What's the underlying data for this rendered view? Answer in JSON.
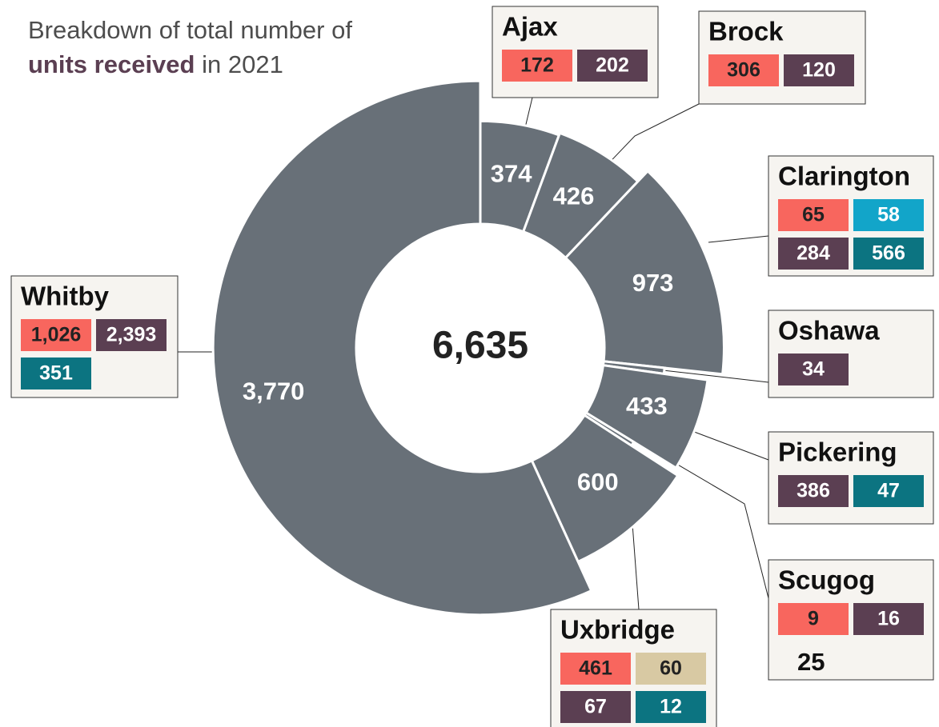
{
  "chart_data": {
    "type": "donut",
    "title": "Breakdown of total number of",
    "title_bold": "units received",
    "title_end": "in 2021",
    "total": {
      "value": 6635,
      "label": "6,635"
    },
    "color": "#687078",
    "categories": [
      "Ajax",
      "Brock",
      "Clarington",
      "Oshawa",
      "Pickering",
      "Scugog",
      "Uxbridge",
      "Whitby"
    ],
    "values": [
      374,
      426,
      973,
      34,
      433,
      25,
      600,
      3770
    ],
    "value_labels": [
      "374",
      "426",
      "973",
      "34",
      "433",
      "25",
      "600",
      "3,770"
    ],
    "breakdowns": [
      [
        {
          "value": 172,
          "color": "#f8665e"
        },
        {
          "value": 202,
          "color": "#5b3f52"
        }
      ],
      [
        {
          "value": 306,
          "color": "#f8665e"
        },
        {
          "value": 120,
          "color": "#5b3f52"
        }
      ],
      [
        {
          "value": 65,
          "color": "#f8665e"
        },
        {
          "value": 58,
          "color": "#12a5c9"
        },
        {
          "value": 284,
          "color": "#5b3f52"
        },
        {
          "value": 566,
          "color": "#0c7481"
        }
      ],
      [
        {
          "value": 34,
          "color": "#5b3f52"
        }
      ],
      [
        {
          "value": 386,
          "color": "#5b3f52"
        },
        {
          "value": 47,
          "color": "#0c7481"
        }
      ],
      [
        {
          "value": 9,
          "color": "#f8665e"
        },
        {
          "value": 16,
          "color": "#5b3f52"
        }
      ],
      [
        {
          "value": 461,
          "color": "#f8665e"
        },
        {
          "value": 60,
          "color": "#d8c9a3"
        },
        {
          "value": 67,
          "color": "#5b3f52"
        },
        {
          "value": 12,
          "color": "#0c7481"
        }
      ],
      [
        {
          "value": 1026,
          "label": "1,026",
          "color": "#f8665e"
        },
        {
          "value": 2393,
          "label": "2,393",
          "color": "#5b3f52"
        },
        {
          "value": 351,
          "color": "#0c7481"
        }
      ]
    ]
  }
}
